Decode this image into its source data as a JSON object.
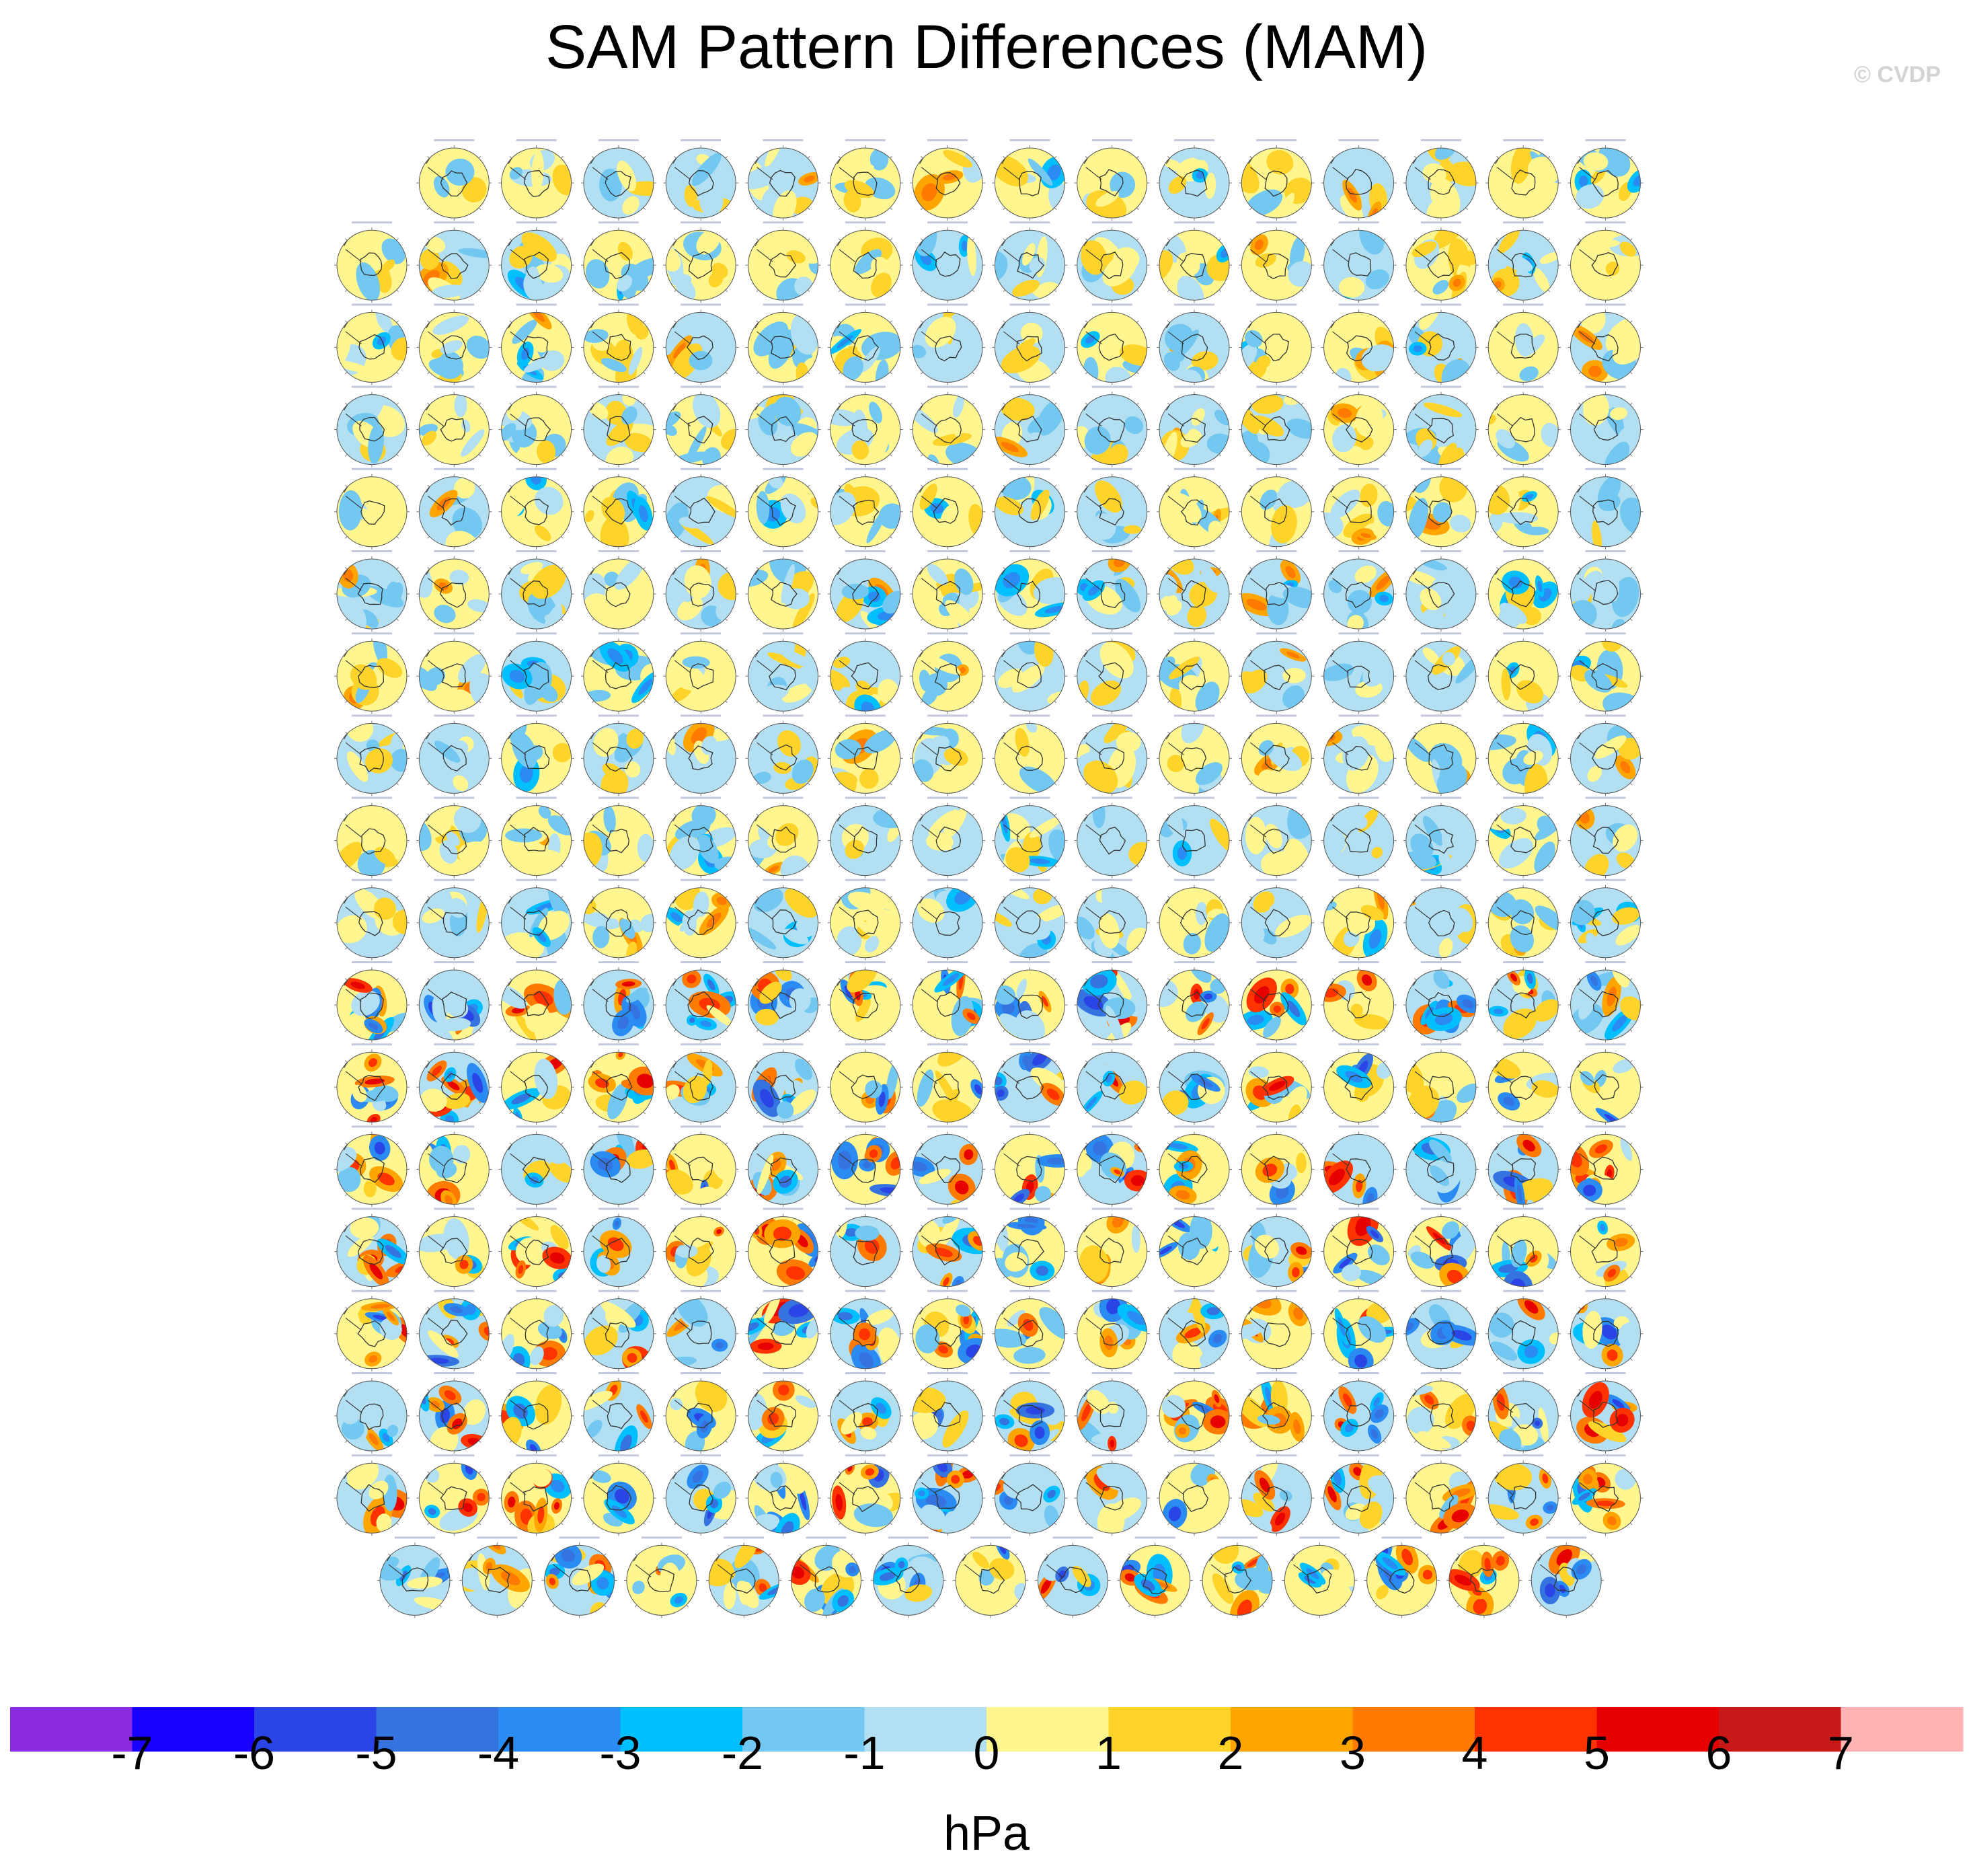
{
  "title": "SAM Pattern Differences (MAM)",
  "watermark": "© CVDP",
  "chart_data": {
    "type": "heatmap",
    "description_note": "",
    "panel_layout": {
      "rows": 18,
      "panels_per_row": [
        15,
        16,
        16,
        16,
        16,
        16,
        16,
        16,
        16,
        16,
        16,
        16,
        16,
        16,
        16,
        16,
        16,
        15
      ]
    },
    "colorbar": {
      "units": "hPa",
      "tick_labels": [
        "-7",
        "-6",
        "-5",
        "-4",
        "-3",
        "-2",
        "-1",
        "0",
        "1",
        "2",
        "3",
        "4",
        "5",
        "6",
        "7"
      ],
      "colors": [
        "#8a2be2",
        "#1a00ff",
        "#2b44e6",
        "#3573e0",
        "#2a8cf2",
        "#00bfff",
        "#72c8f0",
        "#b2dff2",
        "#fff68f",
        "#ffd42a",
        "#ffa500",
        "#ff7a00",
        "#ff3300",
        "#e60000",
        "#c81818",
        "#ffb3b3"
      ]
    }
  }
}
